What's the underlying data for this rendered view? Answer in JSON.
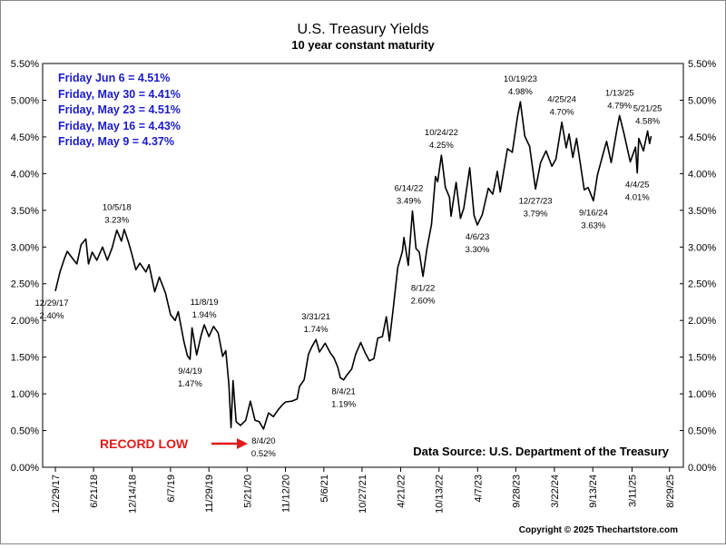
{
  "chart_data": {
    "type": "line",
    "title": "U.S. Treasury Yields",
    "subtitle": "10 year constant maturity",
    "ylim": [
      0.0,
      5.5
    ],
    "y_ticks": [
      "0.00%",
      "0.50%",
      "1.00%",
      "1.50%",
      "2.00%",
      "2.50%",
      "3.00%",
      "3.50%",
      "4.00%",
      "4.50%",
      "5.00%",
      "5.50%"
    ],
    "x_ticks": [
      "12/29/17",
      "6/21/18",
      "12/14/18",
      "6/7/19",
      "11/29/19",
      "5/21/20",
      "11/12/20",
      "5/6/21",
      "10/27/21",
      "4/21/22",
      "10/13/22",
      "4/7/23",
      "9/28/23",
      "3/22/24",
      "9/13/24",
      "3/11/25",
      "8/29/25"
    ],
    "x_range": [
      "2017-11-01",
      "2025-10-31"
    ],
    "grid": false,
    "series": [
      {
        "color": "#000000",
        "points": [
          [
            "2017-12-29",
            2.4
          ],
          [
            "2018-01-19",
            2.66
          ],
          [
            "2018-02-09",
            2.85
          ],
          [
            "2018-02-21",
            2.94
          ],
          [
            "2018-03-16",
            2.85
          ],
          [
            "2018-04-06",
            2.77
          ],
          [
            "2018-04-25",
            3.03
          ],
          [
            "2018-05-17",
            3.11
          ],
          [
            "2018-05-29",
            2.77
          ],
          [
            "2018-06-15",
            2.93
          ],
          [
            "2018-07-06",
            2.82
          ],
          [
            "2018-08-01",
            3.0
          ],
          [
            "2018-08-23",
            2.82
          ],
          [
            "2018-09-14",
            2.99
          ],
          [
            "2018-10-05",
            3.23
          ],
          [
            "2018-10-26",
            3.08
          ],
          [
            "2018-11-08",
            3.24
          ],
          [
            "2018-11-28",
            3.06
          ],
          [
            "2018-12-14",
            2.89
          ],
          [
            "2018-12-31",
            2.69
          ],
          [
            "2019-01-18",
            2.78
          ],
          [
            "2019-02-15",
            2.66
          ],
          [
            "2019-03-01",
            2.76
          ],
          [
            "2019-03-27",
            2.39
          ],
          [
            "2019-04-17",
            2.59
          ],
          [
            "2019-05-15",
            2.37
          ],
          [
            "2019-06-07",
            2.08
          ],
          [
            "2019-06-28",
            2.0
          ],
          [
            "2019-07-12",
            2.12
          ],
          [
            "2019-08-07",
            1.71
          ],
          [
            "2019-08-23",
            1.52
          ],
          [
            "2019-09-04",
            1.47
          ],
          [
            "2019-09-13",
            1.9
          ],
          [
            "2019-10-04",
            1.53
          ],
          [
            "2019-10-25",
            1.8
          ],
          [
            "2019-11-08",
            1.94
          ],
          [
            "2019-11-29",
            1.78
          ],
          [
            "2019-12-20",
            1.92
          ],
          [
            "2020-01-10",
            1.83
          ],
          [
            "2020-01-31",
            1.51
          ],
          [
            "2020-02-14",
            1.59
          ],
          [
            "2020-02-28",
            1.13
          ],
          [
            "2020-03-09",
            0.54
          ],
          [
            "2020-03-18",
            1.18
          ],
          [
            "2020-04-01",
            0.62
          ],
          [
            "2020-04-21",
            0.57
          ],
          [
            "2020-05-15",
            0.64
          ],
          [
            "2020-06-05",
            0.9
          ],
          [
            "2020-06-26",
            0.64
          ],
          [
            "2020-07-15",
            0.62
          ],
          [
            "2020-08-04",
            0.52
          ],
          [
            "2020-08-27",
            0.74
          ],
          [
            "2020-09-18",
            0.69
          ],
          [
            "2020-10-09",
            0.78
          ],
          [
            "2020-10-29",
            0.85
          ],
          [
            "2020-11-13",
            0.89
          ],
          [
            "2020-12-11",
            0.9
          ],
          [
            "2021-01-04",
            0.93
          ],
          [
            "2021-01-15",
            1.1
          ],
          [
            "2021-02-05",
            1.19
          ],
          [
            "2021-02-25",
            1.54
          ],
          [
            "2021-03-12",
            1.64
          ],
          [
            "2021-03-31",
            1.74
          ],
          [
            "2021-04-16",
            1.57
          ],
          [
            "2021-05-12",
            1.69
          ],
          [
            "2021-06-04",
            1.56
          ],
          [
            "2021-06-21",
            1.49
          ],
          [
            "2021-07-09",
            1.36
          ],
          [
            "2021-07-20",
            1.22
          ],
          [
            "2021-08-04",
            1.19
          ],
          [
            "2021-08-20",
            1.26
          ],
          [
            "2021-09-10",
            1.34
          ],
          [
            "2021-09-28",
            1.54
          ],
          [
            "2021-10-21",
            1.7
          ],
          [
            "2021-11-10",
            1.56
          ],
          [
            "2021-11-30",
            1.45
          ],
          [
            "2021-12-20",
            1.48
          ],
          [
            "2022-01-07",
            1.76
          ],
          [
            "2022-01-28",
            1.78
          ],
          [
            "2022-02-15",
            2.05
          ],
          [
            "2022-03-01",
            1.72
          ],
          [
            "2022-03-18",
            2.15
          ],
          [
            "2022-04-08",
            2.72
          ],
          [
            "2022-04-29",
            2.94
          ],
          [
            "2022-05-06",
            3.13
          ],
          [
            "2022-05-26",
            2.75
          ],
          [
            "2022-06-14",
            3.49
          ],
          [
            "2022-06-30",
            2.98
          ],
          [
            "2022-07-15",
            2.93
          ],
          [
            "2022-08-01",
            2.6
          ],
          [
            "2022-08-19",
            2.98
          ],
          [
            "2022-09-09",
            3.31
          ],
          [
            "2022-09-27",
            3.96
          ],
          [
            "2022-10-07",
            3.89
          ],
          [
            "2022-10-24",
            4.25
          ],
          [
            "2022-11-11",
            3.81
          ],
          [
            "2022-11-30",
            3.68
          ],
          [
            "2022-12-07",
            3.42
          ],
          [
            "2022-12-30",
            3.88
          ],
          [
            "2023-01-19",
            3.39
          ],
          [
            "2023-02-03",
            3.53
          ],
          [
            "2023-03-02",
            4.08
          ],
          [
            "2023-03-22",
            3.43
          ],
          [
            "2023-04-06",
            3.3
          ],
          [
            "2023-04-28",
            3.44
          ],
          [
            "2023-05-26",
            3.8
          ],
          [
            "2023-06-15",
            3.72
          ],
          [
            "2023-07-06",
            4.03
          ],
          [
            "2023-07-19",
            3.75
          ],
          [
            "2023-08-21",
            4.34
          ],
          [
            "2023-09-12",
            4.29
          ],
          [
            "2023-10-06",
            4.78
          ],
          [
            "2023-10-19",
            4.98
          ],
          [
            "2023-11-08",
            4.51
          ],
          [
            "2023-11-30",
            4.37
          ],
          [
            "2023-12-27",
            3.79
          ],
          [
            "2024-01-19",
            4.15
          ],
          [
            "2024-02-13",
            4.31
          ],
          [
            "2024-03-11",
            4.1
          ],
          [
            "2024-03-29",
            4.2
          ],
          [
            "2024-04-25",
            4.7
          ],
          [
            "2024-05-15",
            4.35
          ],
          [
            "2024-05-28",
            4.54
          ],
          [
            "2024-06-14",
            4.22
          ],
          [
            "2024-07-01",
            4.48
          ],
          [
            "2024-08-05",
            3.78
          ],
          [
            "2024-08-23",
            3.81
          ],
          [
            "2024-09-16",
            3.63
          ],
          [
            "2024-10-04",
            3.98
          ],
          [
            "2024-10-31",
            4.28
          ],
          [
            "2024-11-15",
            4.44
          ],
          [
            "2024-12-06",
            4.15
          ],
          [
            "2024-12-31",
            4.58
          ],
          [
            "2025-01-13",
            4.79
          ],
          [
            "2025-02-03",
            4.54
          ],
          [
            "2025-03-03",
            4.16
          ],
          [
            "2025-03-27",
            4.36
          ],
          [
            "2025-04-04",
            4.01
          ],
          [
            "2025-04-11",
            4.48
          ],
          [
            "2025-05-02",
            4.31
          ],
          [
            "2025-05-21",
            4.58
          ],
          [
            "2025-05-30",
            4.41
          ],
          [
            "2025-06-06",
            4.51
          ]
        ]
      }
    ],
    "annotations": [
      {
        "date": "12/29/17",
        "value": "2.40%",
        "x": "2017-12-29",
        "y": 2.4,
        "pos": "below-left"
      },
      {
        "date": "10/5/18",
        "value": "3.23%",
        "x": "2018-10-05",
        "y": 3.23,
        "pos": "above"
      },
      {
        "date": "9/4/19",
        "value": "1.47%",
        "x": "2019-09-04",
        "y": 1.47,
        "pos": "below"
      },
      {
        "date": "11/8/19",
        "value": "1.94%",
        "x": "2019-11-08",
        "y": 1.94,
        "pos": "above"
      },
      {
        "date": "8/4/20",
        "value": "0.52%",
        "x": "2020-08-04",
        "y": 0.52,
        "pos": "below"
      },
      {
        "date": "3/31/21",
        "value": "1.74%",
        "x": "2021-03-31",
        "y": 1.74,
        "pos": "above"
      },
      {
        "date": "8/4/21",
        "value": "1.19%",
        "x": "2021-08-04",
        "y": 1.19,
        "pos": "below"
      },
      {
        "date": "6/14/22",
        "value": "3.49%",
        "x": "2022-06-14",
        "y": 3.49,
        "pos": "above-left"
      },
      {
        "date": "8/1/22",
        "value": "2.60%",
        "x": "2022-08-01",
        "y": 2.6,
        "pos": "below"
      },
      {
        "date": "10/24/22",
        "value": "4.25%",
        "x": "2022-10-24",
        "y": 4.25,
        "pos": "above"
      },
      {
        "date": "4/6/23",
        "value": "3.30%",
        "x": "2023-04-06",
        "y": 3.3,
        "pos": "below"
      },
      {
        "date": "10/19/23",
        "value": "4.98%",
        "x": "2023-10-19",
        "y": 4.98,
        "pos": "above"
      },
      {
        "date": "12/27/23",
        "value": "3.79%",
        "x": "2023-12-27",
        "y": 3.79,
        "pos": "below"
      },
      {
        "date": "4/25/24",
        "value": "4.70%",
        "x": "2024-04-25",
        "y": 4.7,
        "pos": "above"
      },
      {
        "date": "9/16/24",
        "value": "3.63%",
        "x": "2024-09-16",
        "y": 3.63,
        "pos": "below"
      },
      {
        "date": "1/13/25",
        "value": "4.79%",
        "x": "2025-01-13",
        "y": 4.79,
        "pos": "above"
      },
      {
        "date": "4/4/25",
        "value": "4.01%",
        "x": "2025-04-04",
        "y": 4.01,
        "pos": "below"
      },
      {
        "date": "5/21/25",
        "value": "4.58%",
        "x": "2025-05-21",
        "y": 4.58,
        "pos": "above"
      }
    ],
    "legend_text": [
      "Friday Jun 6 = 4.51%",
      "Friday, May 30 = 4.41%",
      "Friday, May 23 = 4.51%",
      "Friday, May 16 = 4.43%",
      "Friday, May 9 = 4.37%"
    ],
    "legend_color": "#1a1ad0",
    "record_low_label": "RECORD LOW",
    "record_low_color": "#e31a1a",
    "source": "Data Source:  U.S. Department of the Treasury",
    "copyright": "Copyright © 2025 Thechartstore.com"
  }
}
